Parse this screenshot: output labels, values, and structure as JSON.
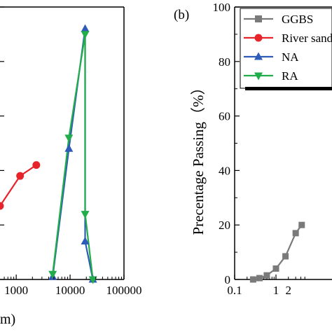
{
  "chart_data": [
    {
      "type": "line",
      "panel": "a",
      "xscale": "log",
      "xlim": [
        500,
        100000
      ],
      "x_tick_labels": [
        "1000",
        "10000",
        "100000"
      ],
      "xlabel_fragment": "m)",
      "series": [
        {
          "name": "River sand",
          "color": "#e8242b",
          "marker": "circle",
          "x": [
            500,
            1180,
            2360
          ],
          "y": [
            27,
            38,
            42
          ]
        },
        {
          "name": "NA",
          "color": "#2e5bb8",
          "marker": "triangle-up",
          "x": [
            4750,
            9500,
            19000,
            19000,
            26500
          ],
          "y": [
            1,
            48,
            92,
            14,
            0
          ]
        },
        {
          "name": "RA",
          "color": "#21ad4a",
          "marker": "triangle-down",
          "x": [
            4750,
            9500,
            19000,
            19000,
            26500
          ],
          "y": [
            2,
            52,
            90,
            24,
            0
          ]
        }
      ]
    },
    {
      "type": "line",
      "panel": "b",
      "panel_label": "(b)",
      "xscale": "log",
      "xlim": [
        0.1,
        10
      ],
      "ylim": [
        0,
        100
      ],
      "x_tick_labels": [
        "0.1",
        "1"
      ],
      "x_tick_partial": "2",
      "y_ticks": [
        "0",
        "20",
        "40",
        "60",
        "80",
        "100"
      ],
      "ylabel": "Precentage Passing（%）",
      "legend_position": "top-right",
      "series": [
        {
          "name": "GGBS",
          "color": "#7a7a7a",
          "marker": "square",
          "x": [
            0.28,
            0.4,
            0.6,
            1.0,
            1.7,
            3.0,
            4.2
          ],
          "y": [
            0,
            0.5,
            1.5,
            4,
            8.5,
            17,
            20
          ]
        },
        {
          "name": "River sand",
          "color": "#e8242b",
          "marker": "circle",
          "x": [],
          "y": []
        },
        {
          "name": "NA",
          "color": "#2e5bb8",
          "marker": "triangle-up",
          "x": [],
          "y": []
        },
        {
          "name": "RA",
          "color": "#21ad4a",
          "marker": "triangle-down",
          "x": [],
          "y": []
        }
      ]
    }
  ]
}
